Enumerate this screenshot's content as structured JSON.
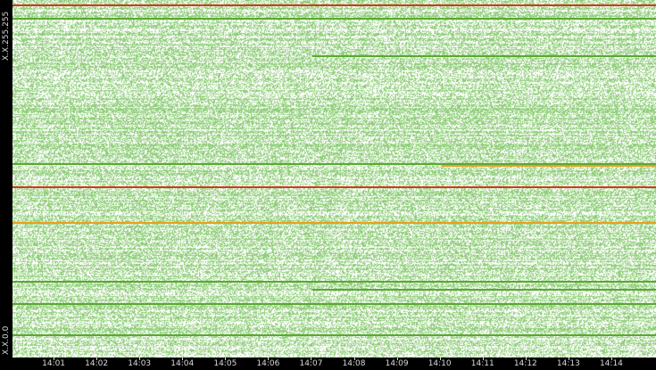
{
  "chart_data": {
    "type": "heatmap",
    "title": "",
    "xlabel": "",
    "ylabel": "",
    "y_tick_labels": {
      "top": "X.X.255.255",
      "bottom": "X.X.0.0"
    },
    "x_tick_labels": [
      "14:01",
      "14:02",
      "14:03",
      "14:04",
      "14:05",
      "14:06",
      "14:07",
      "14:08",
      "14:09",
      "14:10",
      "14:11",
      "14:12",
      "14:13",
      "14:14"
    ],
    "x_range": [
      "14:00",
      "14:15"
    ],
    "y_range": [
      0,
      65535
    ],
    "colors": {
      "background": "#ffffff",
      "low": "#8fce7a",
      "mid": "#5aa832",
      "high": "#e8a020",
      "max": "#d23a1a"
    },
    "density": "sparse light-green dots across nearly all address rows, scattered at every minute",
    "highlight_rows": [
      {
        "y": 64600,
        "from": "14:00",
        "to": "14:15",
        "level": "max"
      },
      {
        "y": 62100,
        "from": "14:00",
        "to": "14:15",
        "level": "mid"
      },
      {
        "y": 55200,
        "from": "14:07",
        "to": "14:15",
        "level": "mid"
      },
      {
        "y": 35500,
        "from": "14:00",
        "to": "14:15",
        "level": "mid"
      },
      {
        "y": 35200,
        "from": "14:10",
        "to": "14:15",
        "level": "high"
      },
      {
        "y": 31200,
        "from": "14:00",
        "to": "14:15",
        "level": "max"
      },
      {
        "y": 24700,
        "from": "14:00",
        "to": "14:15",
        "level": "high"
      },
      {
        "y": 13900,
        "from": "14:00",
        "to": "14:15",
        "level": "mid"
      },
      {
        "y": 12400,
        "from": "14:07",
        "to": "14:15",
        "level": "mid"
      },
      {
        "y": 9800,
        "from": "14:00",
        "to": "14:15",
        "level": "mid"
      },
      {
        "y": 4100,
        "from": "14:00",
        "to": "14:15",
        "level": "mid"
      }
    ]
  }
}
